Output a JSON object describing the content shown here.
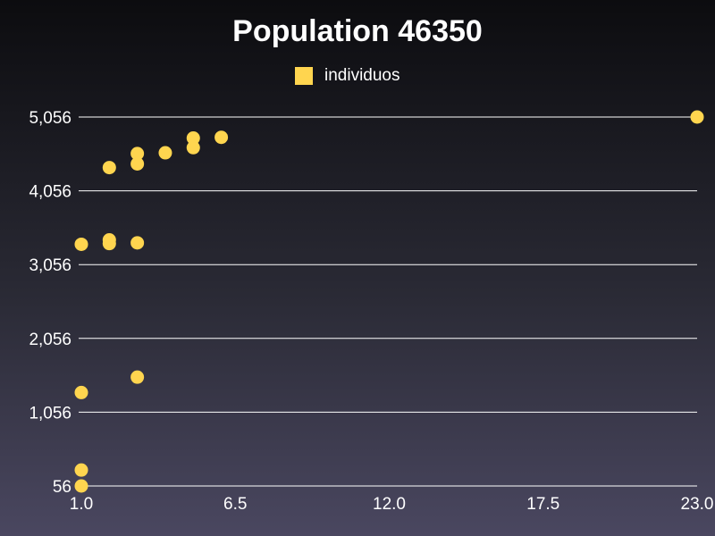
{
  "chart_data": {
    "type": "scatter",
    "title": "Population 46350",
    "legend": {
      "position": "top-center",
      "label": "individuos"
    },
    "series": [
      {
        "name": "individuos",
        "color": "#ffd54f",
        "points": [
          [
            1.0,
            56
          ],
          [
            1.0,
            272
          ],
          [
            1.0,
            1322
          ],
          [
            1.0,
            3331
          ],
          [
            2.0,
            3391
          ],
          [
            2.0,
            3341
          ],
          [
            2.0,
            4371
          ],
          [
            3.0,
            1531
          ],
          [
            3.0,
            3351
          ],
          [
            3.0,
            4421
          ],
          [
            3.0,
            4561
          ],
          [
            4.0,
            4571
          ],
          [
            5.0,
            4641
          ],
          [
            5.0,
            4771
          ],
          [
            6.0,
            4781
          ],
          [
            23.0,
            5056
          ]
        ]
      }
    ],
    "x_ticks": [
      "1.0",
      "6.5",
      "12.0",
      "17.5",
      "23.0"
    ],
    "x_range": [
      1.0,
      23.0
    ],
    "y_ticks": [
      "5,056",
      "4,056",
      "3,056",
      "2,056",
      "1,056",
      "56"
    ],
    "y_range": [
      56,
      5056
    ],
    "grid": "horizontal",
    "xlabel": "",
    "ylabel": ""
  }
}
